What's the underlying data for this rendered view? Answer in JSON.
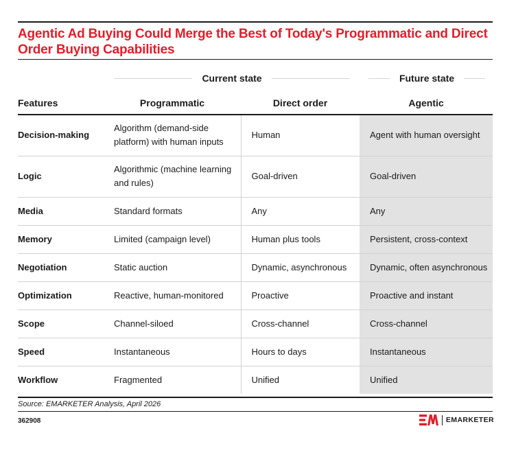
{
  "title": "Agentic Ad Buying Could Merge the Best of Today's Programmatic and Direct Order Buying Capabilities",
  "group_headers": {
    "current": "Current state",
    "future": "Future state"
  },
  "columns": [
    "Features",
    "Programmatic",
    "Direct order",
    "Agentic"
  ],
  "rows": [
    {
      "feature": "Decision-making",
      "programmatic": "Algorithm (demand-side platform) with human inputs",
      "direct": "Human",
      "agentic": "Agent with human oversight"
    },
    {
      "feature": "Logic",
      "programmatic": "Algorithmic (machine learning and rules)",
      "direct": "Goal-driven",
      "agentic": "Goal-driven"
    },
    {
      "feature": "Media",
      "programmatic": "Standard formats",
      "direct": "Any",
      "agentic": "Any"
    },
    {
      "feature": "Memory",
      "programmatic": "Limited (campaign level)",
      "direct": "Human plus tools",
      "agentic": "Persistent, cross-context"
    },
    {
      "feature": "Negotiation",
      "programmatic": "Static auction",
      "direct": "Dynamic, asynchronous",
      "agentic": "Dynamic, often asynchronous"
    },
    {
      "feature": "Optimization",
      "programmatic": "Reactive, human-monitored",
      "direct": "Proactive",
      "agentic": "Proactive and instant"
    },
    {
      "feature": "Scope",
      "programmatic": "Channel-siloed",
      "direct": "Cross-channel",
      "agentic": "Cross-channel"
    },
    {
      "feature": "Speed",
      "programmatic": "Instantaneous",
      "direct": "Hours to days",
      "agentic": "Instantaneous"
    },
    {
      "feature": "Workflow",
      "programmatic": "Fragmented",
      "direct": "Unified",
      "agentic": "Unified"
    }
  ],
  "source": "Source: EMARKETER Analysis, April 2026",
  "chart_id": "362908",
  "brand": {
    "name": "EMARKETER",
    "logo_icon": "emarketer-logo-icon",
    "color": "#e21e2b"
  },
  "colors": {
    "title": "#e21e2b",
    "future_column_bg": "#e2e2e2",
    "text": "#1a1a1a"
  }
}
